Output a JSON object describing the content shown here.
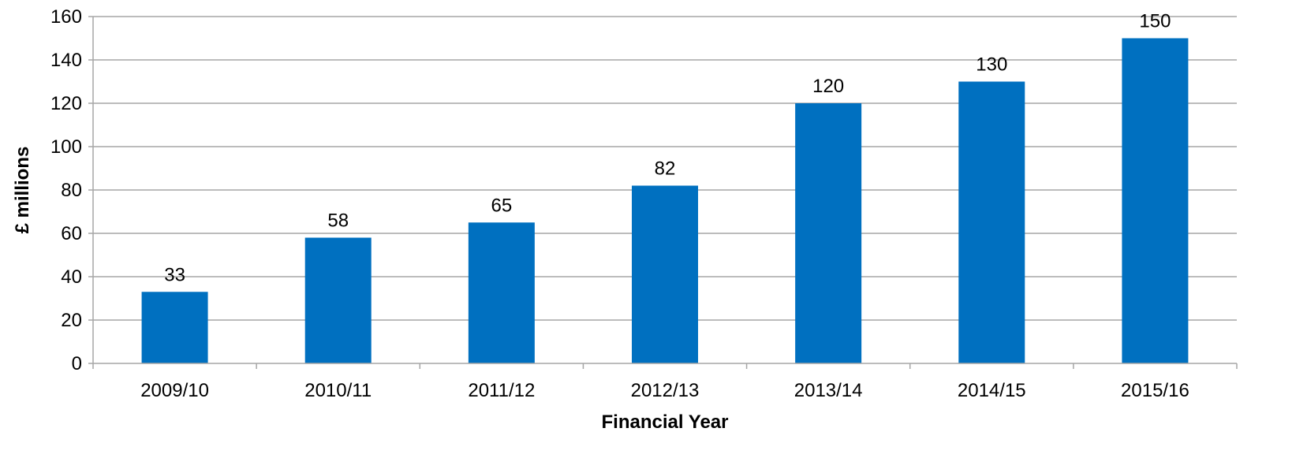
{
  "chart_data": {
    "type": "bar",
    "categories": [
      "2009/10",
      "2010/11",
      "2011/12",
      "2012/13",
      "2013/14",
      "2014/15",
      "2015/16"
    ],
    "values": [
      33,
      58,
      65,
      82,
      120,
      130,
      150
    ],
    "data_labels": [
      "33",
      "58",
      "65",
      "82",
      "120",
      "130",
      "150"
    ],
    "y_ticks": [
      "0",
      "20",
      "40",
      "60",
      "80",
      "100",
      "120",
      "140",
      "160"
    ],
    "xlabel": "Financial Year",
    "ylabel": "£ millions",
    "ylim": [
      0,
      160
    ],
    "grid": true,
    "legend": "none",
    "bar_color": "#0070C0",
    "grid_color": "#A6A6A6"
  }
}
